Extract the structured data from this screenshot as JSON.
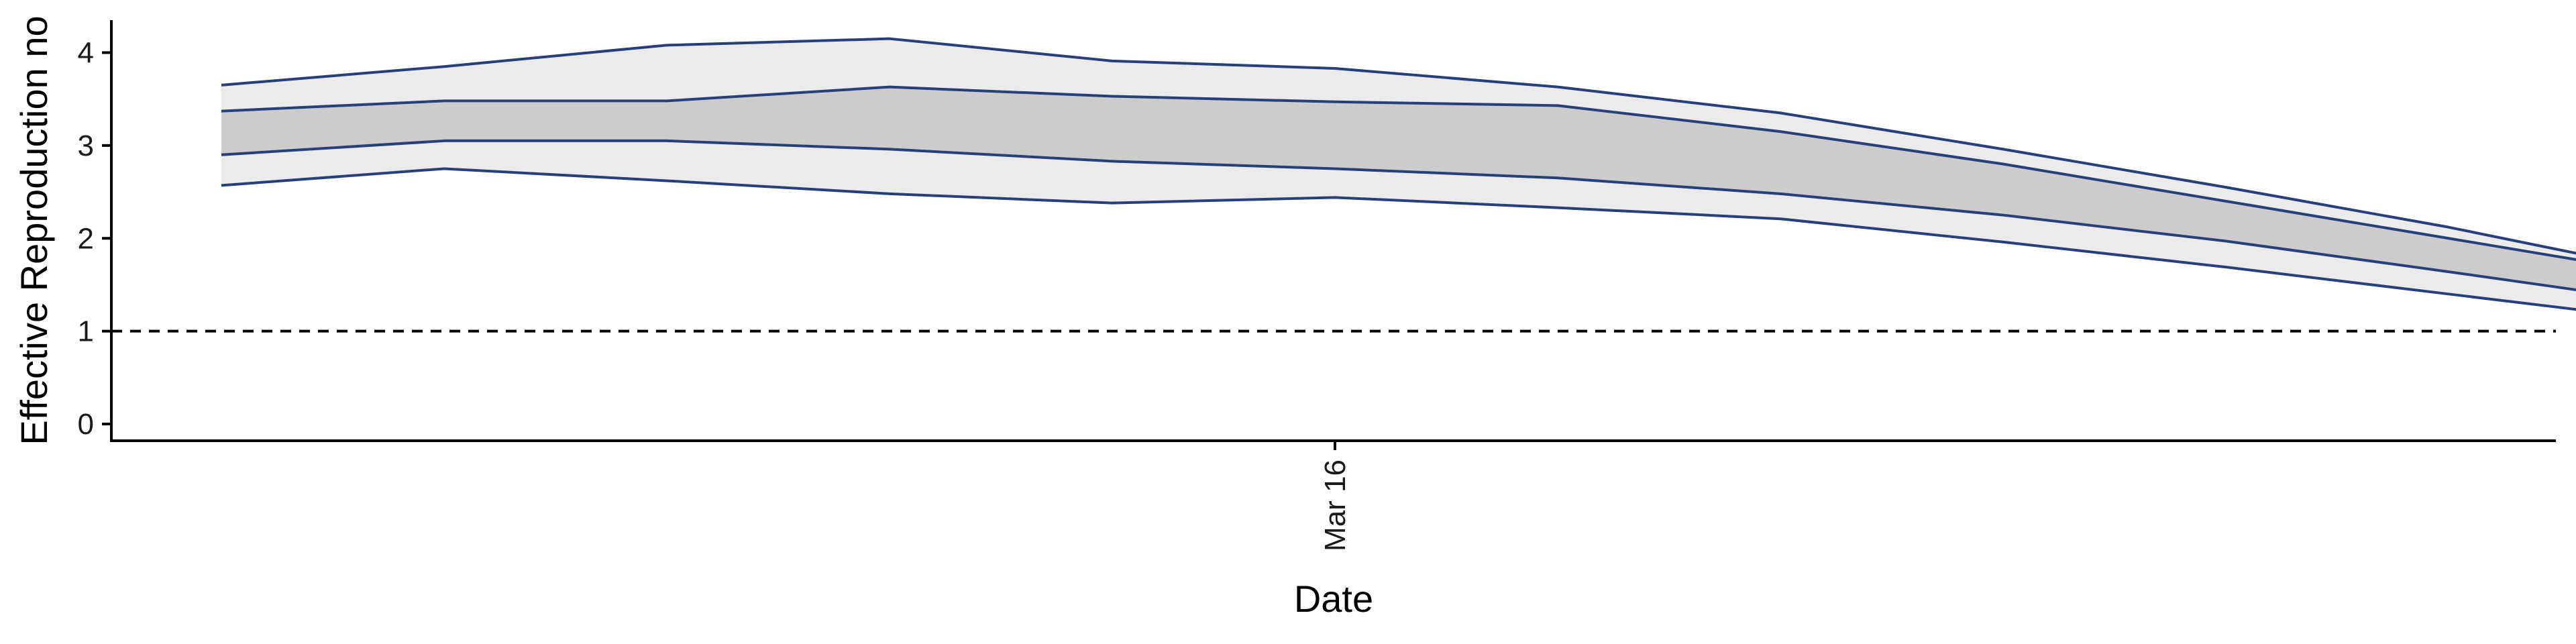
{
  "chart_data": {
    "type": "area",
    "xlabel": "Date",
    "ylabel": "Effective Reproduction no",
    "ylim": [
      -0.18,
      4.35
    ],
    "yticks": [
      0,
      1,
      2,
      3,
      4
    ],
    "xticks": [
      {
        "x": "2020-03-16",
        "label": "Mar 16"
      }
    ],
    "x": [
      "2020-03-11",
      "2020-03-12",
      "2020-03-13",
      "2020-03-14",
      "2020-03-15",
      "2020-03-16",
      "2020-03-17",
      "2020-03-18",
      "2020-03-19",
      "2020-03-20",
      "2020-03-21",
      "2020-03-22"
    ],
    "series": [
      {
        "band": "outer",
        "upper": [
          3.65,
          3.85,
          4.08,
          4.15,
          3.91,
          3.83,
          3.63,
          3.35,
          2.96,
          2.55,
          2.12,
          1.63
        ],
        "lower": [
          2.57,
          2.75,
          2.62,
          2.48,
          2.38,
          2.44,
          2.33,
          2.21,
          1.96,
          1.69,
          1.4,
          1.11
        ]
      },
      {
        "band": "inner",
        "upper": [
          3.37,
          3.48,
          3.48,
          3.63,
          3.53,
          3.47,
          3.43,
          3.15,
          2.8,
          2.4,
          2.0,
          1.6
        ],
        "lower": [
          2.9,
          3.05,
          3.05,
          2.96,
          2.83,
          2.75,
          2.65,
          2.48,
          2.25,
          1.97,
          1.64,
          1.3
        ]
      }
    ],
    "reference_line": {
      "y": 1,
      "style": "dashed"
    },
    "colors": {
      "band_line": "#27407a",
      "outer_fill": "#ebebeb",
      "inner_fill": "#cccccc",
      "axis": "#000000",
      "reference": "#000000"
    }
  }
}
